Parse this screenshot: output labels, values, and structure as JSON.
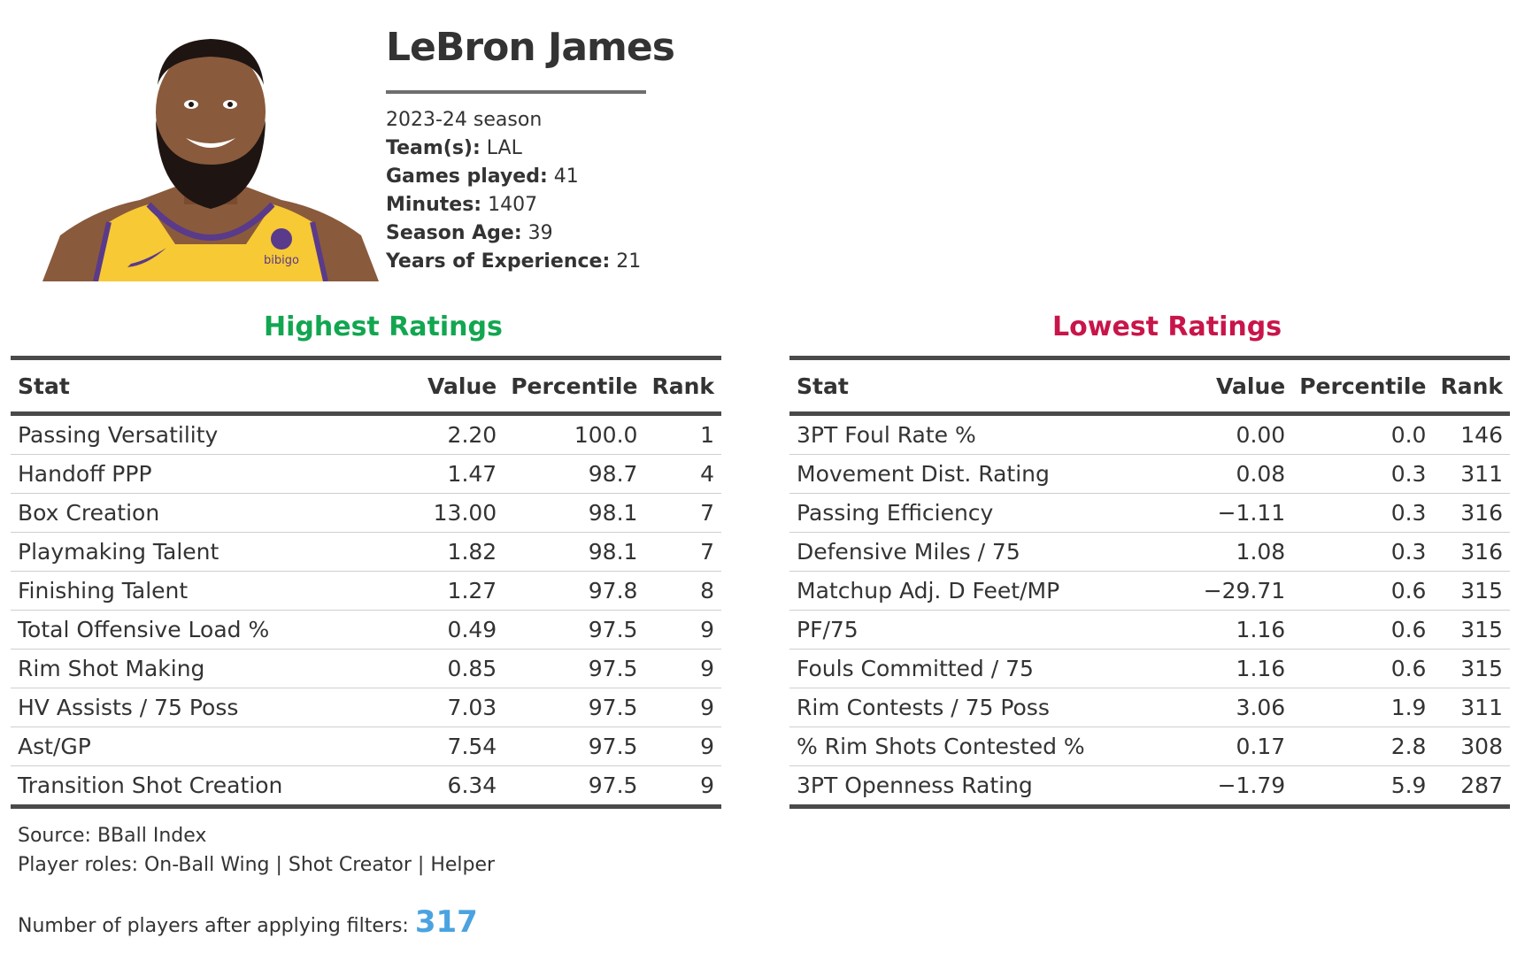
{
  "player": {
    "name": "LeBron James",
    "season": "2023-24 season",
    "info": [
      {
        "label": "Team(s):",
        "value": "LAL"
      },
      {
        "label": "Games played:",
        "value": "41"
      },
      {
        "label": "Minutes:",
        "value": "1407"
      },
      {
        "label": "Season Age:",
        "value": "39"
      },
      {
        "label": "Years of Experience:",
        "value": "21"
      }
    ],
    "photo_jersey_text": "bibigo"
  },
  "colors": {
    "highest": "#12a650",
    "lowest": "#c8154a",
    "count_accent": "#4aa3e0",
    "rule": "#4a4a4a"
  },
  "columns": {
    "stat": "Stat",
    "value": "Value",
    "percentile": "Percentile",
    "rank": "Rank"
  },
  "highest": {
    "title": "Highest Ratings",
    "rows": [
      {
        "stat": "Passing Versatility",
        "value": "2.20",
        "percentile": "100.0",
        "rank": "1"
      },
      {
        "stat": "Handoff PPP",
        "value": "1.47",
        "percentile": "98.7",
        "rank": "4"
      },
      {
        "stat": "Box Creation",
        "value": "13.00",
        "percentile": "98.1",
        "rank": "7"
      },
      {
        "stat": "Playmaking Talent",
        "value": "1.82",
        "percentile": "98.1",
        "rank": "7"
      },
      {
        "stat": "Finishing Talent",
        "value": "1.27",
        "percentile": "97.8",
        "rank": "8"
      },
      {
        "stat": "Total Offensive Load %",
        "value": "0.49",
        "percentile": "97.5",
        "rank": "9"
      },
      {
        "stat": "Rim Shot Making",
        "value": "0.85",
        "percentile": "97.5",
        "rank": "9"
      },
      {
        "stat": "HV Assists / 75 Poss",
        "value": "7.03",
        "percentile": "97.5",
        "rank": "9"
      },
      {
        "stat": "Ast/GP",
        "value": "7.54",
        "percentile": "97.5",
        "rank": "9"
      },
      {
        "stat": "Transition Shot Creation",
        "value": "6.34",
        "percentile": "97.5",
        "rank": "9"
      }
    ]
  },
  "lowest": {
    "title": "Lowest Ratings",
    "rows": [
      {
        "stat": "3PT Foul Rate %",
        "value": "0.00",
        "percentile": "0.0",
        "rank": "146"
      },
      {
        "stat": "Movement Dist. Rating",
        "value": "0.08",
        "percentile": "0.3",
        "rank": "311"
      },
      {
        "stat": "Passing Efficiency",
        "value": "−1.11",
        "percentile": "0.3",
        "rank": "316"
      },
      {
        "stat": "Defensive Miles / 75",
        "value": "1.08",
        "percentile": "0.3",
        "rank": "316"
      },
      {
        "stat": "Matchup Adj. D Feet/MP",
        "value": "−29.71",
        "percentile": "0.6",
        "rank": "315"
      },
      {
        "stat": "PF/75",
        "value": "1.16",
        "percentile": "0.6",
        "rank": "315"
      },
      {
        "stat": "Fouls Committed / 75",
        "value": "1.16",
        "percentile": "0.6",
        "rank": "315"
      },
      {
        "stat": "Rim Contests / 75 Poss",
        "value": "3.06",
        "percentile": "1.9",
        "rank": "311"
      },
      {
        "stat": "% Rim Shots Contested %",
        "value": "0.17",
        "percentile": "2.8",
        "rank": "308"
      },
      {
        "stat": "3PT Openness Rating",
        "value": "−1.79",
        "percentile": "5.9",
        "rank": "287"
      }
    ]
  },
  "footer": {
    "source": "Source: BBall Index",
    "roles": "Player roles: On-Ball Wing | Shot Creator | Helper",
    "count_label": "Number of players after applying filters:",
    "count_value": "317"
  }
}
